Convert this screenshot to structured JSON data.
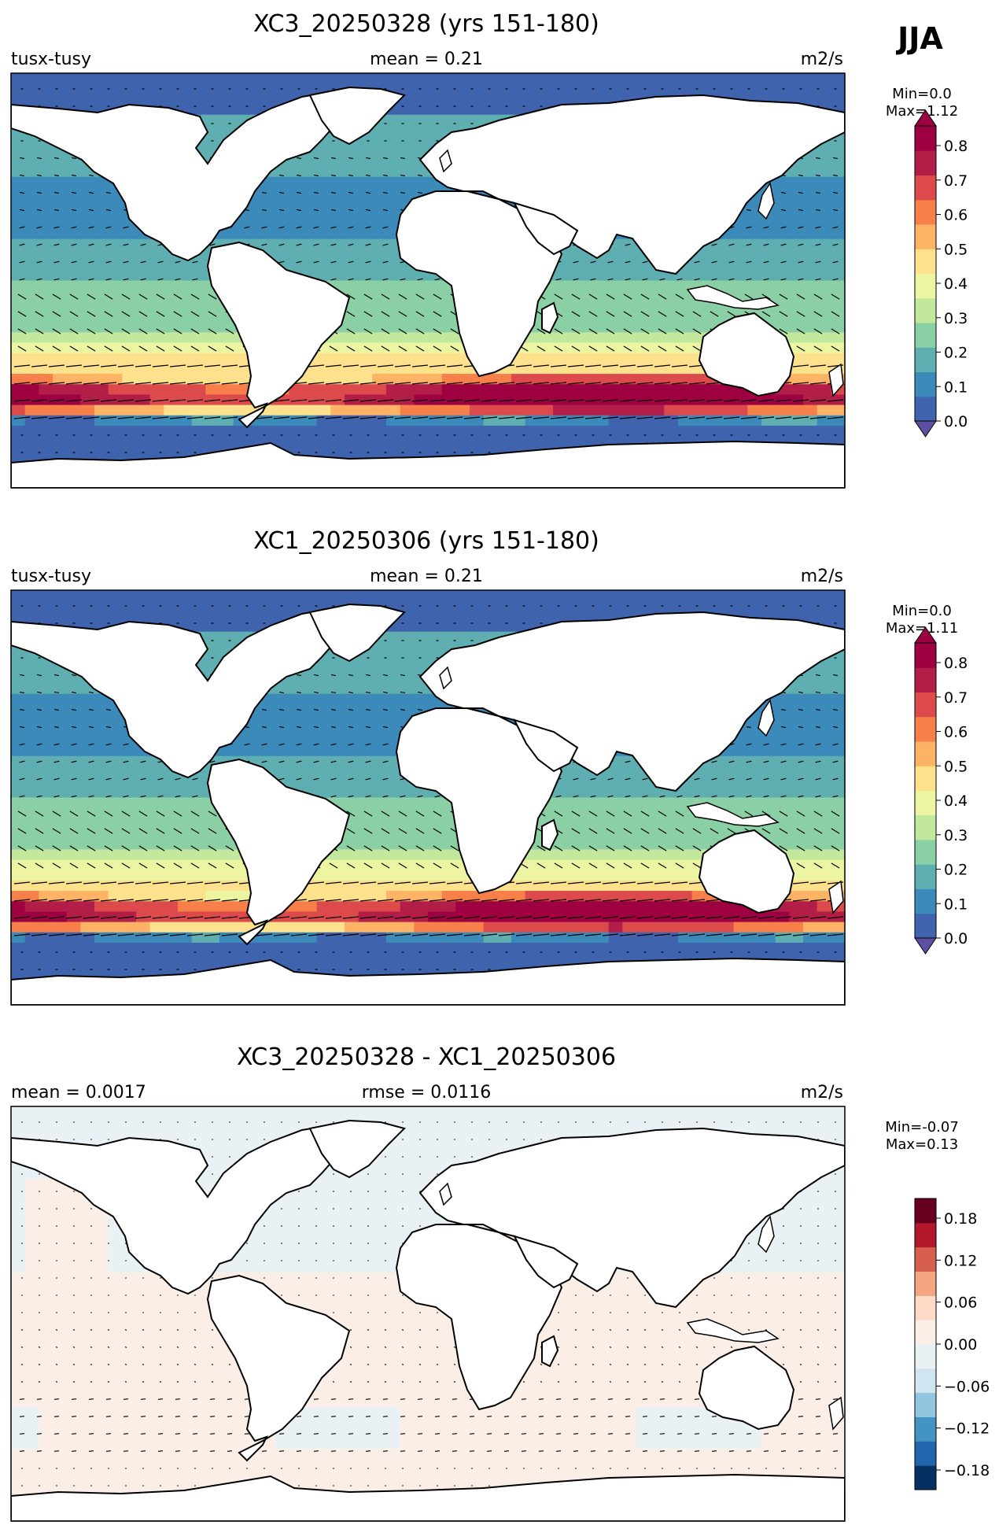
{
  "season": "JJA",
  "chart_data": [
    {
      "type": "heatmap",
      "title": "XC3_20250328 (yrs 151-180)",
      "left_label": "tusx-tusy",
      "center_label": "mean = 0.21",
      "units": "m2/s",
      "minmax": [
        "Min=0.0",
        "Max=1.12"
      ],
      "colorbar": {
        "ticks": [
          "0.0",
          "0.1",
          "0.2",
          "0.3",
          "0.4",
          "0.5",
          "0.6",
          "0.7",
          "0.8"
        ],
        "colors": [
          "#3f64ad",
          "#3c8ab9",
          "#5faeb1",
          "#8ad0a4",
          "#c2e79d",
          "#edf5a3",
          "#fde18c",
          "#fdb366",
          "#f67f4a",
          "#dd4a4c",
          "#b21e48",
          "#9e0142"
        ],
        "extend": "both"
      },
      "vectors": true
    },
    {
      "type": "heatmap",
      "title": "XC1_20250306 (yrs 151-180)",
      "left_label": "tusx-tusy",
      "center_label": "mean = 0.21",
      "units": "m2/s",
      "minmax": [
        "Min=0.0",
        "Max=1.11"
      ],
      "colorbar": {
        "ticks": [
          "0.0",
          "0.1",
          "0.2",
          "0.3",
          "0.4",
          "0.5",
          "0.6",
          "0.7",
          "0.8"
        ],
        "colors": [
          "#3f64ad",
          "#3c8ab9",
          "#5faeb1",
          "#8ad0a4",
          "#c2e79d",
          "#edf5a3",
          "#fde18c",
          "#fdb366",
          "#f67f4a",
          "#dd4a4c",
          "#b21e48",
          "#9e0142"
        ],
        "extend": "both"
      },
      "vectors": true
    },
    {
      "type": "heatmap",
      "title": "XC3_20250328 - XC1_20250306",
      "left_label": "mean = 0.0017",
      "center_label": "rmse = 0.0116",
      "units": "m2/s",
      "minmax": [
        "Min=-0.07",
        "Max=0.13"
      ],
      "colorbar": {
        "ticks": [
          "−0.18",
          "−0.12",
          "−0.06",
          "0.00",
          "0.06",
          "0.12",
          "0.18"
        ],
        "colors": [
          "#053061",
          "#2166ac",
          "#4393c3",
          "#92c5de",
          "#d1e5f0",
          "#eaf1f4",
          "#fbeee6",
          "#fddbc7",
          "#f4a582",
          "#d6604d",
          "#b2182b",
          "#67001f"
        ],
        "extend": "none"
      },
      "vectors": true
    }
  ]
}
